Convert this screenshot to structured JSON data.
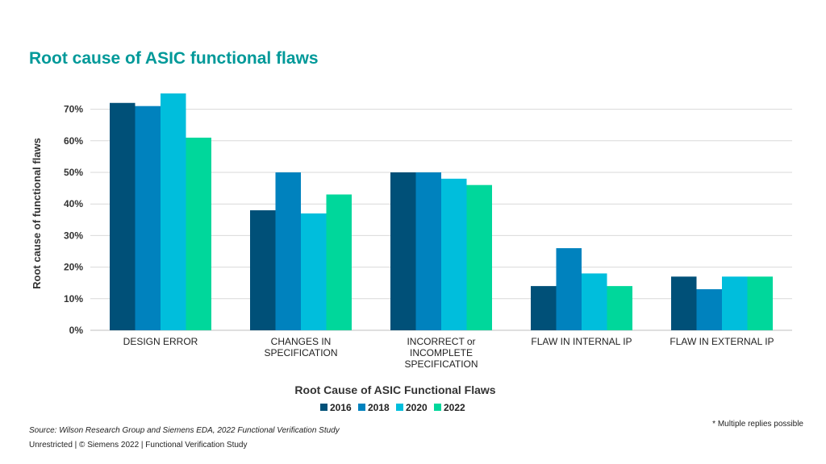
{
  "page": {
    "title": "Root cause of ASIC functional flaws",
    "source": "Source:  Wilson Research Group and Siemens EDA, 2022 Functional Verification Study",
    "footer": "Unrestricted | © Siemens 2022 |  Functional Verification Study",
    "footnote": "* Multiple replies possible"
  },
  "chart_data": {
    "type": "bar",
    "xlabel": "Root Cause of ASIC Functional Flaws",
    "ylabel": "Root cause of functional flaws",
    "ylim": [
      0,
      70
    ],
    "yticks": [
      0,
      10,
      20,
      30,
      40,
      50,
      60,
      70
    ],
    "ytick_labels": [
      "0%",
      "10%",
      "20%",
      "30%",
      "40%",
      "50%",
      "60%",
      "70%"
    ],
    "grid": true,
    "legend_position": "bottom",
    "categories": [
      [
        "DESIGN ERROR"
      ],
      [
        "CHANGES IN",
        "SPECIFICATION"
      ],
      [
        "INCORRECT or",
        "INCOMPLETE",
        "SPECIFICATION"
      ],
      [
        "FLAW IN INTERNAL IP"
      ],
      [
        "FLAW IN EXTERNAL IP"
      ]
    ],
    "series": [
      {
        "name": "2016",
        "color": "#005078",
        "values": [
          72,
          38,
          50,
          14,
          17
        ]
      },
      {
        "name": "2018",
        "color": "#0082BE",
        "values": [
          71,
          50,
          50,
          26,
          13
        ]
      },
      {
        "name": "2020",
        "color": "#00BEDC",
        "values": [
          75,
          37,
          48,
          18,
          17
        ]
      },
      {
        "name": "2022",
        "color": "#00D79B",
        "values": [
          61,
          43,
          46,
          14,
          17
        ]
      }
    ]
  }
}
